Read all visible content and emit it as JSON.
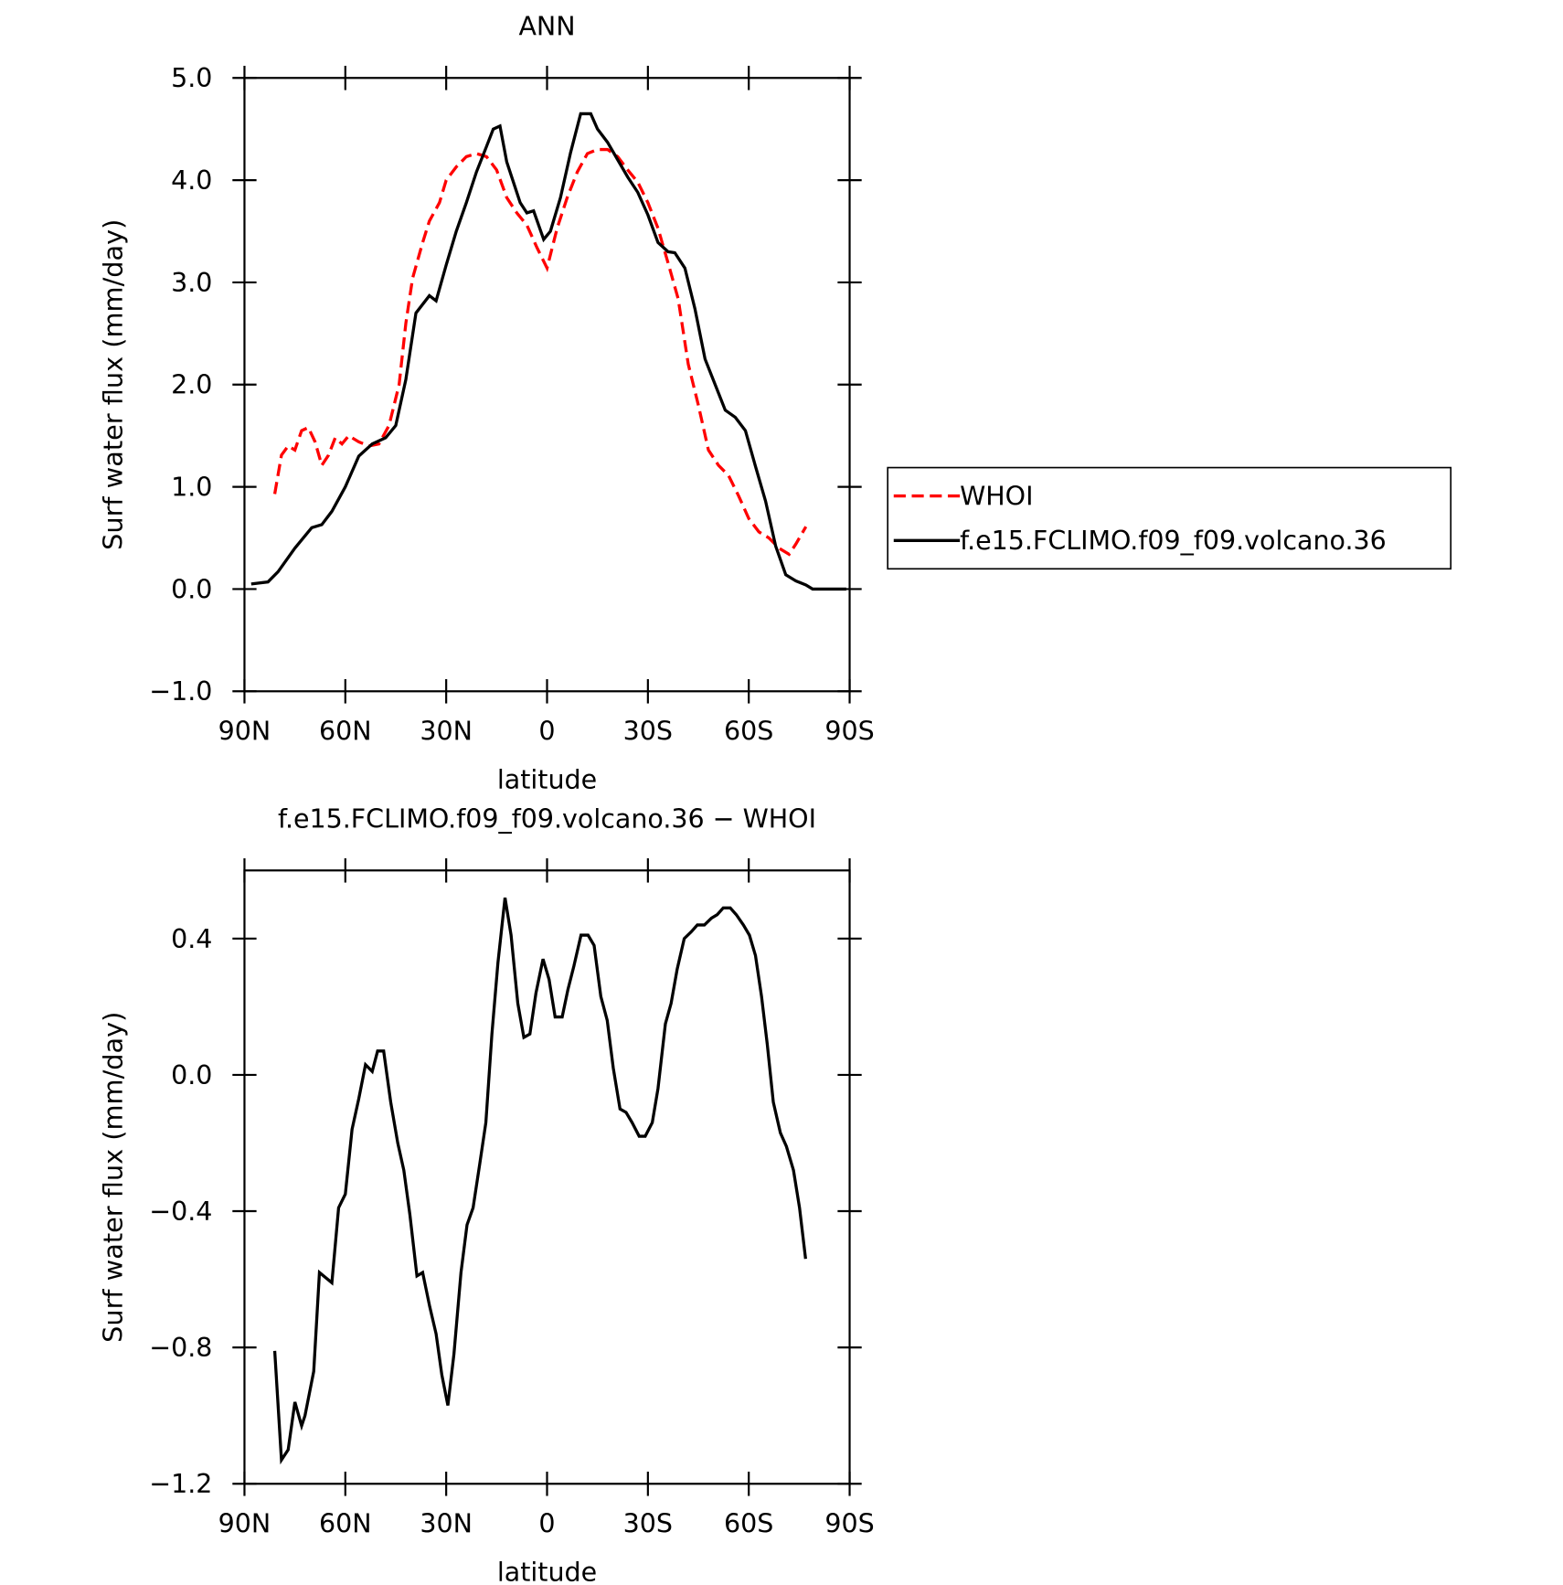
{
  "chart_data": [
    {
      "type": "line",
      "title": "ANN",
      "xlabel": "latitude",
      "ylabel": "Surf water flux (mm/day)",
      "xlim": [
        90,
        -90
      ],
      "xticks": [
        {
          "value": 90,
          "label": "90N"
        },
        {
          "value": 60,
          "label": "60N"
        },
        {
          "value": 30,
          "label": "30N"
        },
        0,
        {
          "value": -30,
          "label": "30S"
        },
        {
          "value": -60,
          "label": "60S"
        },
        {
          "value": -90,
          "label": "90S"
        }
      ],
      "ylim": [
        -1,
        5
      ],
      "yticks": [
        {
          "value": -1,
          "label": "−1.0"
        },
        {
          "value": 0,
          "label": "0.0"
        },
        {
          "value": 1,
          "label": "1.0"
        },
        {
          "value": 2,
          "label": "2.0"
        },
        {
          "value": 3,
          "label": "3.0"
        },
        {
          "value": 4,
          "label": "4.0"
        },
        {
          "value": 5,
          "label": "5.0"
        }
      ],
      "legend": "outside right",
      "series": [
        {
          "name": "WHOI",
          "color": "#ff0000",
          "dash": "dashed",
          "x": [
            81,
            79,
            77,
            75,
            73,
            71,
            69,
            67,
            65,
            63,
            61,
            59,
            56,
            53,
            50,
            47,
            44,
            42,
            40,
            37,
            35,
            32,
            30,
            27,
            24,
            21,
            18,
            15,
            12,
            9,
            6,
            3,
            0,
            -3,
            -6,
            -9,
            -12,
            -15,
            -18,
            -21,
            -24,
            -27,
            -30,
            -33,
            -36,
            -39,
            -42,
            -45,
            -48,
            -51,
            -54,
            -57,
            -60,
            -63,
            -66,
            -69,
            -72,
            -74,
            -77
          ],
          "values": [
            0.93,
            1.31,
            1.4,
            1.36,
            1.55,
            1.58,
            1.44,
            1.21,
            1.31,
            1.48,
            1.42,
            1.5,
            1.44,
            1.4,
            1.42,
            1.6,
            2.0,
            2.6,
            3.04,
            3.39,
            3.6,
            3.78,
            4.0,
            4.13,
            4.23,
            4.26,
            4.23,
            4.1,
            3.83,
            3.68,
            3.56,
            3.34,
            3.14,
            3.53,
            3.83,
            4.08,
            4.26,
            4.3,
            4.3,
            4.23,
            4.1,
            3.98,
            3.78,
            3.53,
            3.19,
            2.84,
            2.2,
            1.8,
            1.36,
            1.21,
            1.11,
            0.91,
            0.69,
            0.56,
            0.5,
            0.4,
            0.34,
            0.44,
            0.61
          ]
        },
        {
          "name": "f.e15.FCLIMO.f09_f09.volcano.36",
          "color": "#000000",
          "dash": "solid",
          "x": [
            88,
            83,
            80,
            75,
            70,
            67,
            64,
            60,
            56,
            52,
            48,
            45,
            42,
            39,
            35,
            33,
            30,
            27,
            24,
            21,
            18,
            16,
            14,
            12,
            10,
            8,
            6,
            4,
            1,
            -1,
            -4,
            -7,
            -10,
            -13,
            -15,
            -18,
            -21,
            -24,
            -27,
            -30,
            -33,
            -36,
            -38,
            -41,
            -44,
            -47,
            -50,
            -53,
            -56,
            -59,
            -62,
            -65,
            -68,
            -71,
            -74,
            -77,
            -79,
            -83,
            -89
          ],
          "values": [
            0.05,
            0.07,
            0.17,
            0.4,
            0.6,
            0.63,
            0.76,
            1.0,
            1.3,
            1.42,
            1.48,
            1.6,
            2.05,
            2.7,
            2.87,
            2.82,
            3.17,
            3.5,
            3.78,
            4.08,
            4.33,
            4.5,
            4.53,
            4.18,
            3.98,
            3.78,
            3.68,
            3.7,
            3.42,
            3.5,
            3.83,
            4.27,
            4.65,
            4.65,
            4.5,
            4.37,
            4.2,
            4.03,
            3.88,
            3.66,
            3.39,
            3.3,
            3.29,
            3.14,
            2.74,
            2.25,
            2.0,
            1.75,
            1.68,
            1.55,
            1.2,
            0.86,
            0.42,
            0.14,
            0.08,
            0.04,
            0.0,
            0.0,
            0.0
          ]
        }
      ]
    },
    {
      "type": "line",
      "title": "f.e15.FCLIMO.f09_f09.volcano.36 − WHOI",
      "xlabel": "latitude",
      "ylabel": "Surf water flux (mm/day)",
      "xlim": [
        90,
        -90
      ],
      "xticks": [
        {
          "value": 90,
          "label": "90N"
        },
        {
          "value": 60,
          "label": "60N"
        },
        {
          "value": 30,
          "label": "30N"
        },
        0,
        {
          "value": -30,
          "label": "30S"
        },
        {
          "value": -60,
          "label": "60S"
        },
        {
          "value": -90,
          "label": "90S"
        }
      ],
      "ylim": [
        -1.2,
        0.6
      ],
      "yticks": [
        {
          "value": -1.2,
          "label": "−1.2"
        },
        {
          "value": -0.8,
          "label": "−0.8"
        },
        {
          "value": -0.4,
          "label": "−0.4"
        },
        {
          "value": 0,
          "label": "0.0"
        },
        {
          "value": 0.4,
          "label": "0.4"
        }
      ],
      "series": [
        {
          "color": "#000000",
          "dash": "solid",
          "x": [
            81,
            79,
            77,
            75,
            73,
            72,
            69.4,
            67.7,
            64,
            62,
            60,
            58,
            56,
            54,
            52,
            50.4,
            48.6,
            46.5,
            44.4,
            42.6,
            40.8,
            38.7,
            37,
            34.9,
            33,
            31.3,
            29.5,
            27.7,
            25.6,
            23.8,
            22,
            20,
            18.2,
            16.4,
            14.6,
            12.5,
            10.7,
            8.7,
            6.9,
            5.1,
            3.3,
            1.2,
            -0.6,
            -2.4,
            -4.5,
            -6.2,
            -8,
            -10.1,
            -12.2,
            -14,
            -16,
            -17.9,
            -19.7,
            -21.7,
            -23.5,
            -25.3,
            -27.4,
            -29.2,
            -31.3,
            -33,
            -35.2,
            -36.9,
            -38.7,
            -40.8,
            -42.9,
            -44.7,
            -46.8,
            -48.9,
            -50.6,
            -52.4,
            -54.5,
            -56.3,
            -58.4,
            -60.2,
            -62,
            -63.8,
            -65.5,
            -67.3,
            -69.4,
            -71.2,
            -73.3,
            -75.1,
            -76.9
          ],
          "values": [
            -0.81,
            -1.13,
            -1.1,
            -0.96,
            -1.03,
            -1.0,
            -0.87,
            -0.58,
            -0.61,
            -0.39,
            -0.35,
            -0.16,
            -0.07,
            0.03,
            0.01,
            0.07,
            0.07,
            -0.08,
            -0.2,
            -0.28,
            -0.41,
            -0.59,
            -0.58,
            -0.68,
            -0.76,
            -0.88,
            -0.97,
            -0.82,
            -0.58,
            -0.44,
            -0.39,
            -0.26,
            -0.14,
            0.12,
            0.33,
            0.52,
            0.41,
            0.21,
            0.11,
            0.12,
            0.24,
            0.34,
            0.28,
            0.17,
            0.17,
            0.25,
            0.32,
            0.41,
            0.41,
            0.38,
            0.23,
            0.16,
            0.02,
            -0.1,
            -0.11,
            -0.14,
            -0.18,
            -0.18,
            -0.14,
            -0.04,
            0.15,
            0.21,
            0.31,
            0.4,
            0.42,
            0.44,
            0.44,
            0.46,
            0.47,
            0.49,
            0.49,
            0.47,
            0.44,
            0.41,
            0.35,
            0.23,
            0.09,
            -0.08,
            -0.17,
            -0.21,
            -0.28,
            -0.39,
            -0.54
          ]
        }
      ]
    }
  ]
}
